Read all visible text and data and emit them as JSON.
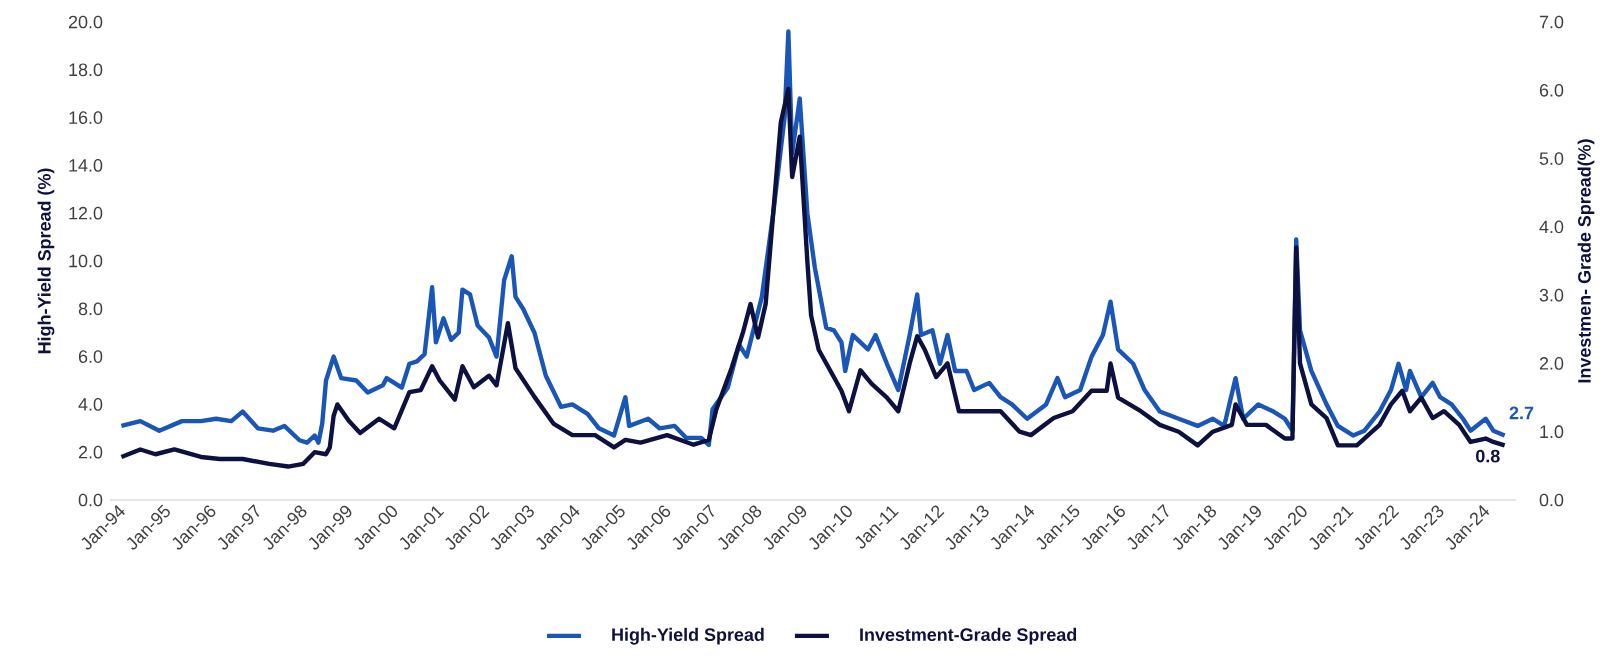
{
  "chart_data": {
    "type": "line",
    "ylabel": "High-Yield Spread (%)",
    "y2label": "Investmen- Grade Spread(%)",
    "xlim": [
      "1993-11",
      "2024-10"
    ],
    "ylim": [
      0,
      20
    ],
    "y2lim": [
      0,
      7
    ],
    "xticks": [
      {
        "value": "1994-01",
        "label": "Jan-94"
      },
      {
        "value": "1995-01",
        "label": "Jan-95"
      },
      {
        "value": "1996-01",
        "label": "Jan-96"
      },
      {
        "value": "1997-01",
        "label": "Jan-97"
      },
      {
        "value": "1998-01",
        "label": "Jan-98"
      },
      {
        "value": "1999-01",
        "label": "Jan-99"
      },
      {
        "value": "2000-01",
        "label": "Jan-00"
      },
      {
        "value": "2001-01",
        "label": "Jan-01"
      },
      {
        "value": "2002-01",
        "label": "Jan-02"
      },
      {
        "value": "2003-01",
        "label": "Jan-03"
      },
      {
        "value": "2004-01",
        "label": "Jan-04"
      },
      {
        "value": "2005-01",
        "label": "Jan-05"
      },
      {
        "value": "2006-01",
        "label": "Jan-06"
      },
      {
        "value": "2007-01",
        "label": "Jan-07"
      },
      {
        "value": "2008-01",
        "label": "Jan-08"
      },
      {
        "value": "2009-01",
        "label": "Jan-09"
      },
      {
        "value": "2010-01",
        "label": "Jan-10"
      },
      {
        "value": "2011-01",
        "label": "Jan-11"
      },
      {
        "value": "2012-01",
        "label": "Jan-12"
      },
      {
        "value": "2013-01",
        "label": "Jan-13"
      },
      {
        "value": "2014-01",
        "label": "Jan-14"
      },
      {
        "value": "2015-01",
        "label": "Jan-15"
      },
      {
        "value": "2016-01",
        "label": "Jan-16"
      },
      {
        "value": "2017-01",
        "label": "Jan-17"
      },
      {
        "value": "2018-01",
        "label": "Jan-18"
      },
      {
        "value": "2019-01",
        "label": "Jan-19"
      },
      {
        "value": "2020-01",
        "label": "Jan-20"
      },
      {
        "value": "2021-01",
        "label": "Jan-21"
      },
      {
        "value": "2022-01",
        "label": "Jan-22"
      },
      {
        "value": "2023-01",
        "label": "Jan-23"
      },
      {
        "value": "2024-01",
        "label": "Jan-24"
      }
    ],
    "yticks": [
      {
        "value": 0,
        "label": "0.0"
      },
      {
        "value": 2,
        "label": "2.0"
      },
      {
        "value": 4,
        "label": "4.0"
      },
      {
        "value": 6,
        "label": "6.0"
      },
      {
        "value": 8,
        "label": "8.0"
      },
      {
        "value": 10,
        "label": "10.0"
      },
      {
        "value": 12,
        "label": "12.0"
      },
      {
        "value": 14,
        "label": "14.0"
      },
      {
        "value": 16,
        "label": "16.0"
      },
      {
        "value": 18,
        "label": "18.0"
      },
      {
        "value": 20,
        "label": "20.0"
      }
    ],
    "y2ticks": [
      {
        "value": 0,
        "label": "0.0"
      },
      {
        "value": 1,
        "label": "1.0"
      },
      {
        "value": 2,
        "label": "2.0"
      },
      {
        "value": 3,
        "label": "3.0"
      },
      {
        "value": 4,
        "label": "4.0"
      },
      {
        "value": 5,
        "label": "5.0"
      },
      {
        "value": 6,
        "label": "6.0"
      },
      {
        "value": 7,
        "label": "7.0"
      }
    ],
    "legend": "bottom",
    "marker": "none",
    "line_style": "solid",
    "series": [
      {
        "name": "High-Yield Spread",
        "color": "#1a56b8",
        "x": [
          "1994-02",
          "1994-07",
          "1994-12",
          "1995-06",
          "1995-11",
          "1996-03",
          "1996-07",
          "1996-10",
          "1997-02",
          "1997-06",
          "1997-09",
          "1998-01",
          "1998-03",
          "1998-05",
          "1998-06",
          "1998-07",
          "1998-08",
          "1998-10",
          "1998-12",
          "1999-04",
          "1999-07",
          "1999-11",
          "1999-12",
          "2000-04",
          "2000-06",
          "2000-08",
          "2000-10",
          "2000-12",
          "2001-01",
          "2001-03",
          "2001-05",
          "2001-07",
          "2001-08",
          "2001-10",
          "2001-12",
          "2002-03",
          "2002-05",
          "2002-07",
          "2002-09",
          "2002-10",
          "2002-12",
          "2003-03",
          "2003-06",
          "2003-10",
          "2004-01",
          "2004-05",
          "2004-08",
          "2004-12",
          "2005-03",
          "2005-04",
          "2005-09",
          "2005-12",
          "2006-04",
          "2006-07",
          "2006-11",
          "2007-01",
          "2007-02",
          "2007-06",
          "2007-09",
          "2007-11",
          "2008-03",
          "2008-06",
          "2008-09",
          "2008-10",
          "2008-11",
          "2009-01",
          "2009-03",
          "2009-05",
          "2009-08",
          "2009-10",
          "2009-12",
          "2010-01",
          "2010-03",
          "2010-07",
          "2010-09",
          "2010-12",
          "2011-03",
          "2011-06",
          "2011-08",
          "2011-09",
          "2011-12",
          "2012-02",
          "2012-04",
          "2012-06",
          "2012-09",
          "2012-11",
          "2013-03",
          "2013-06",
          "2013-09",
          "2014-01",
          "2014-06",
          "2014-09",
          "2014-11",
          "2015-03",
          "2015-06",
          "2015-09",
          "2015-11",
          "2016-01",
          "2016-05",
          "2016-08",
          "2016-12",
          "2017-05",
          "2017-10",
          "2018-02",
          "2018-05",
          "2018-08",
          "2018-10",
          "2019-02",
          "2019-06",
          "2019-09",
          "2019-11",
          "2019-12",
          "2020-01",
          "2020-04",
          "2020-08",
          "2020-11",
          "2021-03",
          "2021-06",
          "2021-10",
          "2022-01",
          "2022-03",
          "2022-05",
          "2022-06",
          "2022-09",
          "2022-12",
          "2023-02",
          "2023-05",
          "2023-08",
          "2023-10",
          "2024-02",
          "2024-04",
          "2024-07"
        ],
        "values": [
          3.1,
          3.3,
          2.9,
          3.3,
          3.3,
          3.4,
          3.3,
          3.7,
          3.0,
          2.9,
          3.1,
          2.5,
          2.4,
          2.7,
          2.4,
          3.2,
          5.0,
          6.0,
          5.1,
          5.0,
          4.5,
          4.8,
          5.1,
          4.7,
          5.7,
          5.8,
          6.1,
          8.9,
          6.6,
          7.6,
          6.7,
          7.0,
          8.8,
          8.6,
          7.3,
          6.8,
          6.0,
          9.2,
          10.2,
          8.5,
          8.0,
          7.0,
          5.2,
          3.9,
          4.0,
          3.6,
          3.0,
          2.7,
          4.3,
          3.1,
          3.4,
          3.0,
          3.1,
          2.6,
          2.6,
          2.3,
          3.8,
          4.7,
          6.5,
          6.0,
          8.5,
          12.0,
          16.0,
          19.6,
          14.5,
          16.8,
          12.0,
          9.7,
          7.2,
          7.1,
          6.6,
          5.4,
          6.9,
          6.3,
          6.9,
          5.7,
          4.6,
          6.9,
          8.6,
          6.9,
          7.1,
          5.7,
          6.9,
          5.4,
          5.4,
          4.6,
          4.9,
          4.3,
          4.0,
          3.4,
          4.0,
          5.1,
          4.3,
          4.6,
          6.0,
          6.9,
          8.3,
          6.3,
          5.7,
          4.6,
          3.7,
          3.4,
          3.1,
          3.4,
          3.1,
          5.1,
          3.4,
          4.0,
          3.7,
          3.4,
          2.9,
          10.9,
          7.1,
          5.4,
          4.0,
          3.1,
          2.7,
          2.9,
          3.7,
          4.6,
          5.7,
          4.6,
          5.4,
          4.3,
          4.9,
          4.3,
          4.0,
          3.4,
          2.9,
          3.4,
          2.9,
          2.7
        ],
        "value_labels": [
          null,
          null,
          null,
          null,
          null,
          null,
          null,
          null,
          null,
          null,
          null,
          null,
          null,
          null,
          null,
          null,
          null,
          null,
          null,
          null,
          null,
          null,
          null,
          null,
          null,
          null,
          null,
          null,
          null,
          null,
          null,
          null,
          null,
          null,
          null,
          null,
          null,
          null,
          null,
          null,
          null,
          null,
          null,
          null,
          null,
          null,
          null,
          null,
          null,
          null,
          null,
          null,
          null,
          null,
          null,
          null,
          null,
          null,
          null,
          null,
          null,
          null,
          null,
          null,
          null,
          null,
          null,
          null,
          null,
          null,
          null,
          null,
          null,
          null,
          null,
          null,
          null,
          null,
          null,
          null,
          null,
          null,
          null,
          null,
          null,
          null,
          null,
          null,
          null,
          null,
          null,
          null,
          null,
          null,
          null,
          null,
          null,
          null,
          null,
          null,
          null,
          null,
          null,
          null,
          null,
          null,
          null,
          null,
          null,
          null,
          null,
          null,
          null,
          null,
          null,
          null,
          null,
          null,
          null,
          null,
          null,
          null,
          null,
          null,
          null,
          null,
          null,
          null,
          null,
          null,
          null,
          "2.7"
        ]
      },
      {
        "name": "Investment-Grade Spread",
        "color": "#0d1140",
        "axis": "y2",
        "x": [
          "1994-02",
          "1994-07",
          "1994-11",
          "1995-04",
          "1995-11",
          "1996-04",
          "1996-10",
          "1997-05",
          "1997-10",
          "1998-02",
          "1998-05",
          "1998-08",
          "1998-09",
          "1998-10",
          "1998-11",
          "1999-02",
          "1999-05",
          "1999-10",
          "2000-02",
          "2000-06",
          "2000-09",
          "2000-12",
          "2001-02",
          "2001-06",
          "2001-08",
          "2001-11",
          "2002-03",
          "2002-05",
          "2002-08",
          "2002-10",
          "2003-03",
          "2003-08",
          "2004-01",
          "2004-07",
          "2004-12",
          "2005-03",
          "2005-07",
          "2006-02",
          "2006-09",
          "2007-01",
          "2007-03",
          "2007-07",
          "2007-10",
          "2007-12",
          "2008-02",
          "2008-04",
          "2008-08",
          "2008-10",
          "2008-11",
          "2009-01",
          "2009-03",
          "2009-04",
          "2009-06",
          "2009-09",
          "2009-12",
          "2010-02",
          "2010-05",
          "2010-08",
          "2010-12",
          "2011-03",
          "2011-06",
          "2011-08",
          "2011-10",
          "2012-01",
          "2012-04",
          "2012-07",
          "2012-12",
          "2013-06",
          "2013-11",
          "2014-02",
          "2014-08",
          "2015-01",
          "2015-06",
          "2015-10",
          "2015-11",
          "2016-01",
          "2016-07",
          "2016-12",
          "2017-05",
          "2017-10",
          "2018-02",
          "2018-07",
          "2018-08",
          "2018-11",
          "2019-04",
          "2019-09",
          "2019-11",
          "2019-12",
          "2020-01",
          "2020-04",
          "2020-08",
          "2020-11",
          "2021-04",
          "2021-10",
          "2022-01",
          "2022-04",
          "2022-06",
          "2022-09",
          "2022-12",
          "2023-03",
          "2023-07",
          "2023-10",
          "2024-02",
          "2024-04",
          "2024-07"
        ],
        "values": [
          0.63,
          0.74,
          0.67,
          0.74,
          0.63,
          0.6,
          0.6,
          0.53,
          0.49,
          0.53,
          0.7,
          0.67,
          0.77,
          1.23,
          1.4,
          1.16,
          0.98,
          1.19,
          1.05,
          1.58,
          1.61,
          1.96,
          1.75,
          1.47,
          1.96,
          1.65,
          1.82,
          1.68,
          2.59,
          1.93,
          1.51,
          1.12,
          0.95,
          0.95,
          0.77,
          0.88,
          0.84,
          0.95,
          0.81,
          0.88,
          1.33,
          1.93,
          2.45,
          2.87,
          2.38,
          2.87,
          5.53,
          6.02,
          4.73,
          5.32,
          3.5,
          2.7,
          2.2,
          1.9,
          1.6,
          1.3,
          1.9,
          1.7,
          1.5,
          1.3,
          2.0,
          2.4,
          2.2,
          1.8,
          2.0,
          1.3,
          1.3,
          1.3,
          1.0,
          0.95,
          1.2,
          1.3,
          1.6,
          1.6,
          2.0,
          1.5,
          1.3,
          1.1,
          1.0,
          0.8,
          1.0,
          1.1,
          1.4,
          1.1,
          1.1,
          0.9,
          0.9,
          3.7,
          2.0,
          1.4,
          1.2,
          0.8,
          0.8,
          1.1,
          1.4,
          1.6,
          1.3,
          1.5,
          1.2,
          1.3,
          1.1,
          0.85,
          0.9,
          0.85,
          0.8
        ],
        "value_labels": [
          null,
          null,
          null,
          null,
          null,
          null,
          null,
          null,
          null,
          null,
          null,
          null,
          null,
          null,
          null,
          null,
          null,
          null,
          null,
          null,
          null,
          null,
          null,
          null,
          null,
          null,
          null,
          null,
          null,
          null,
          null,
          null,
          null,
          null,
          null,
          null,
          null,
          null,
          null,
          null,
          null,
          null,
          null,
          null,
          null,
          null,
          null,
          null,
          null,
          null,
          null,
          null,
          null,
          null,
          null,
          null,
          null,
          null,
          null,
          null,
          null,
          null,
          null,
          null,
          null,
          null,
          null,
          null,
          null,
          null,
          null,
          null,
          null,
          null,
          null,
          null,
          null,
          null,
          null,
          null,
          null,
          null,
          null,
          null,
          null,
          null,
          null,
          null,
          null,
          null,
          null,
          null,
          null,
          null,
          null,
          null,
          null,
          null,
          null,
          null,
          null,
          null,
          null,
          null,
          "0.8"
        ]
      }
    ]
  }
}
